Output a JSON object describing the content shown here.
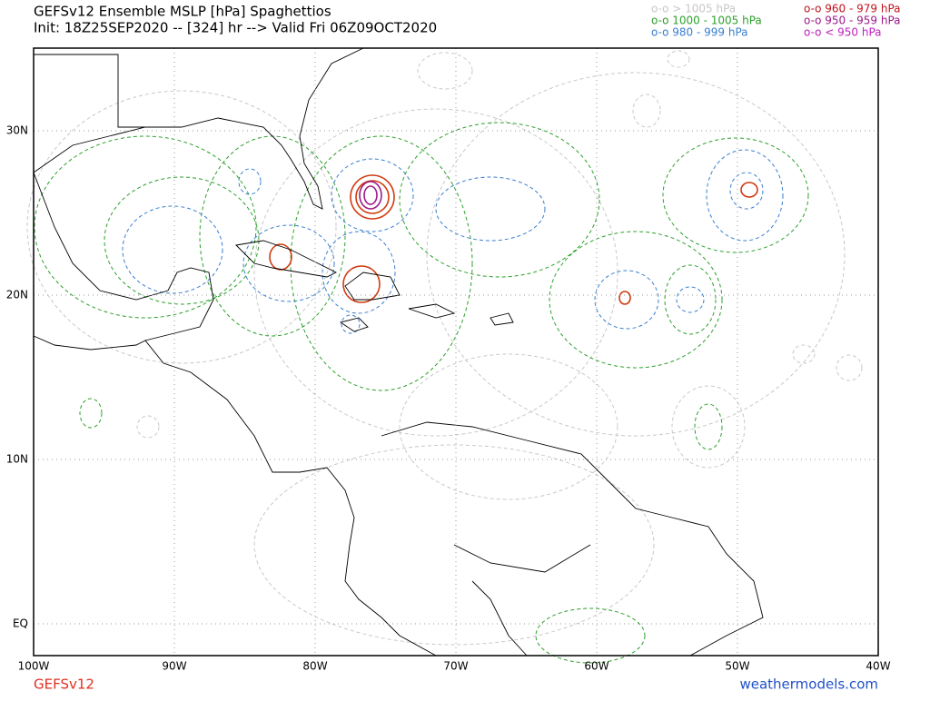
{
  "header": {
    "title": "GEFSv12 Ensemble MSLP [hPa] Spaghettios",
    "init": "Init: 18Z25SEP2020 -- [324] hr --> Valid Fri 06Z09OCT2020"
  },
  "legend": [
    {
      "label": "o-o > 1005 hPa",
      "color": "#c8c8c8"
    },
    {
      "label": "o-o 1000 - 1005 hPa",
      "color": "#2ca02c"
    },
    {
      "label": "o-o 980 - 999 hPa",
      "color": "#3a7fd0"
    },
    {
      "label": "o-o 960 - 979 hPa",
      "color": "#c0141c"
    },
    {
      "label": "o-o 950 - 959 hPa",
      "color": "#9b1a8a"
    },
    {
      "label": "o-o < 950 hPa",
      "color": "#c020c0"
    }
  ],
  "axes": {
    "lat_labels": [
      "30N",
      "20N",
      "10N",
      "EQ"
    ],
    "lon_labels": [
      "100W",
      "90W",
      "80W",
      "70W",
      "60W",
      "50W",
      "40W"
    ]
  },
  "footer": {
    "model": "GEFSv12",
    "site": "weathermodels.com"
  }
}
